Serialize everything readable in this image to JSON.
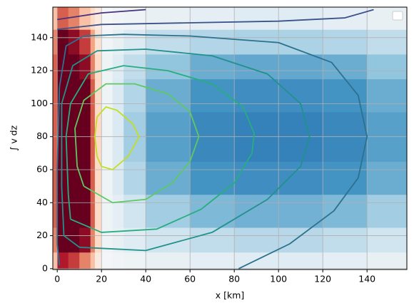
{
  "chart_data": {
    "type": "heatmap-contour",
    "xlabel": "x [km]",
    "ylabel": "∫ v dz",
    "xlim": [
      -2,
      158
    ],
    "ylim": [
      -0.5,
      158.5
    ],
    "xticks": [
      0,
      20,
      40,
      60,
      80,
      100,
      120,
      140
    ],
    "yticks": [
      0,
      20,
      40,
      60,
      80,
      100,
      120,
      140
    ],
    "grid": true,
    "legend": "upper right",
    "zlim": [
      -1,
      1
    ],
    "cmap": [
      "#67001f",
      "#b2182b",
      "#d6604d",
      "#f4a582",
      "#fddbc7",
      "#f7f7f7",
      "#d1e5f0",
      "#92c5de",
      "#4393c3",
      "#2166ac",
      "#053061"
    ],
    "x_edges": [
      -2,
      0,
      5,
      10,
      15,
      17,
      20,
      25,
      30,
      40,
      60,
      80,
      100,
      120,
      140,
      158
    ],
    "y_edges": [
      -0.5,
      10,
      25,
      45,
      65,
      95,
      115,
      130,
      145,
      158.5
    ],
    "z": [
      [
        -0.3,
        -0.8,
        -0.7,
        -0.5,
        -0.3,
        -0.1,
        0.02,
        0.03,
        0.05,
        0.08,
        0.1,
        0.12,
        0.12,
        0.1,
        0.08
      ],
      [
        -0.5,
        -1,
        -1,
        -0.9,
        -0.5,
        -0.2,
        0.05,
        0.08,
        0.12,
        0.2,
        0.25,
        0.28,
        0.28,
        0.25,
        0.2
      ],
      [
        -0.6,
        -1,
        -1,
        -1,
        -0.6,
        -0.2,
        0.05,
        0.1,
        0.2,
        0.35,
        0.45,
        0.48,
        0.48,
        0.45,
        0.35
      ],
      [
        -0.6,
        -1,
        -1,
        -1,
        -0.6,
        -0.2,
        0.05,
        0.15,
        0.3,
        0.5,
        0.6,
        0.62,
        0.62,
        0.6,
        0.5
      ],
      [
        -0.6,
        -1,
        -1,
        -1,
        -0.6,
        -0.2,
        0.05,
        0.15,
        0.35,
        0.55,
        0.65,
        0.68,
        0.68,
        0.65,
        0.55
      ],
      [
        -0.6,
        -1,
        -1,
        -1,
        -0.6,
        -0.2,
        0.05,
        0.15,
        0.3,
        0.5,
        0.6,
        0.62,
        0.62,
        0.6,
        0.5
      ],
      [
        -0.6,
        -1,
        -1,
        -0.9,
        -0.5,
        -0.2,
        0.05,
        0.12,
        0.25,
        0.4,
        0.5,
        0.52,
        0.52,
        0.5,
        0.4
      ],
      [
        -0.5,
        -1,
        -0.9,
        -0.7,
        -0.4,
        -0.15,
        0.03,
        0.08,
        0.15,
        0.25,
        0.3,
        0.32,
        0.32,
        0.3,
        0.25
      ],
      [
        -0.3,
        -0.6,
        -0.5,
        -0.3,
        -0.2,
        -0.1,
        0.01,
        0.03,
        0.05,
        0.08,
        0.1,
        0.12,
        0.12,
        0.1,
        0.08
      ]
    ],
    "contours": [
      {
        "color": "#46327e",
        "x": [
          0,
          10,
          20,
          40
        ],
        "y": [
          151,
          153,
          155,
          157
        ]
      },
      {
        "color": "#3b528b",
        "x": [
          0,
          20,
          60,
          100,
          130,
          143
        ],
        "y": [
          145,
          148,
          149,
          150,
          152,
          157
        ]
      },
      {
        "color": "#2c728e",
        "x": [
          82,
          105,
          125,
          136,
          140,
          136,
          124,
          100,
          60,
          30,
          12,
          4,
          1,
          0,
          0,
          1
        ],
        "y": [
          0,
          15,
          35,
          55,
          80,
          105,
          125,
          137,
          141,
          142,
          141,
          135,
          110,
          60,
          15,
          2
        ]
      },
      {
        "color": "#21918c",
        "x": [
          3,
          10,
          40,
          70,
          95,
          110,
          114,
          110,
          95,
          70,
          40,
          18,
          7,
          2,
          2,
          3
        ],
        "y": [
          20,
          13,
          11,
          22,
          42,
          62,
          80,
          100,
          118,
          129,
          133,
          132,
          123,
          100,
          50,
          20
        ]
      },
      {
        "color": "#27ad81",
        "x": [
          6,
          20,
          45,
          65,
          80,
          88,
          89,
          84,
          70,
          50,
          30,
          14,
          6,
          4,
          5,
          6
        ],
        "y": [
          30,
          22,
          24,
          36,
          52,
          70,
          82,
          98,
          112,
          120,
          123,
          118,
          100,
          80,
          45,
          30
        ]
      },
      {
        "color": "#5ec962",
        "x": [
          12,
          25,
          40,
          52,
          60,
          64,
          60,
          50,
          35,
          22,
          12,
          8,
          9,
          12
        ],
        "y": [
          50,
          40,
          42,
          52,
          65,
          80,
          95,
          106,
          112,
          112,
          102,
          85,
          62,
          50
        ]
      },
      {
        "color": "#c2df23",
        "x": [
          20,
          25,
          32,
          37,
          34,
          27,
          22,
          18,
          17,
          18,
          20
        ],
        "y": [
          62,
          60,
          68,
          80,
          88,
          96,
          98,
          92,
          80,
          68,
          62
        ]
      }
    ]
  }
}
